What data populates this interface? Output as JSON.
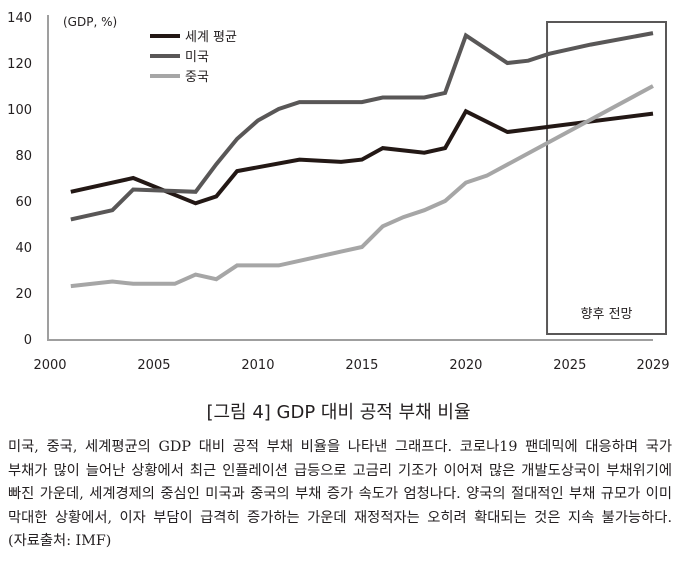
{
  "chart_data": {
    "type": "line",
    "unit_label": "(GDP, %)",
    "ylim": [
      0,
      140
    ],
    "yticks": [
      "0",
      "20",
      "40",
      "60",
      "80",
      "100",
      "120",
      "140"
    ],
    "xlim": [
      2000,
      2029
    ],
    "xticks": [
      "2000",
      "2005",
      "2010",
      "2015",
      "2020",
      "2025",
      "2029"
    ],
    "forecast": {
      "label": "향후 전망",
      "from": 2024,
      "to": 2029
    },
    "series": [
      {
        "name": "세계 평균",
        "color": "#231815",
        "x": [
          2001,
          2004,
          2007,
          2008,
          2009,
          2012,
          2014,
          2015,
          2016,
          2018,
          2019,
          2020,
          2022,
          2029
        ],
        "values": [
          64,
          70,
          59,
          62,
          73,
          78,
          77,
          78,
          83,
          81,
          83,
          99,
          90,
          98
        ]
      },
      {
        "name": "미국",
        "color": "#595757",
        "x": [
          2001,
          2003,
          2004,
          2007,
          2008,
          2009,
          2010,
          2011,
          2012,
          2015,
          2016,
          2018,
          2019,
          2020,
          2022,
          2023,
          2024,
          2026,
          2029
        ],
        "values": [
          52,
          56,
          65,
          64,
          76,
          87,
          95,
          100,
          103,
          103,
          105,
          105,
          107,
          132,
          120,
          121,
          124,
          128,
          133
        ]
      },
      {
        "name": "중국",
        "color": "#a6a6a6",
        "x": [
          2001,
          2003,
          2004,
          2006,
          2007,
          2008,
          2009,
          2011,
          2012,
          2014,
          2015,
          2016,
          2017,
          2018,
          2019,
          2020,
          2021,
          2029
        ],
        "values": [
          23,
          25,
          24,
          24,
          28,
          26,
          32,
          32,
          34,
          38,
          40,
          49,
          53,
          56,
          60,
          68,
          71,
          110
        ]
      }
    ]
  },
  "caption": "[그림 4] GDP 대비 공적 부채 비율",
  "body_text": "미국, 중국, 세계평균의 GDP 대비 공적 부채 비율을 나타낸 그래프다. 코로나19 팬데믹에 대응하며 국가 부채가 많이 늘어난 상황에서 최근 인플레이션 급등으로 고금리 기조가 이어져 많은 개발도상국이 부채위기에 빠진 가운데, 세계경제의 중심인 미국과 중국의 부채 증가 속도가 엄청나다. 양국의 절대적인 부채 규모가 이미 막대한 상황에서, 이자 부담이 급격히 증가하는 가운데 재정적자는 오히려 확대되는 것은 지속 불가능하다. (자료출처: IMF)"
}
